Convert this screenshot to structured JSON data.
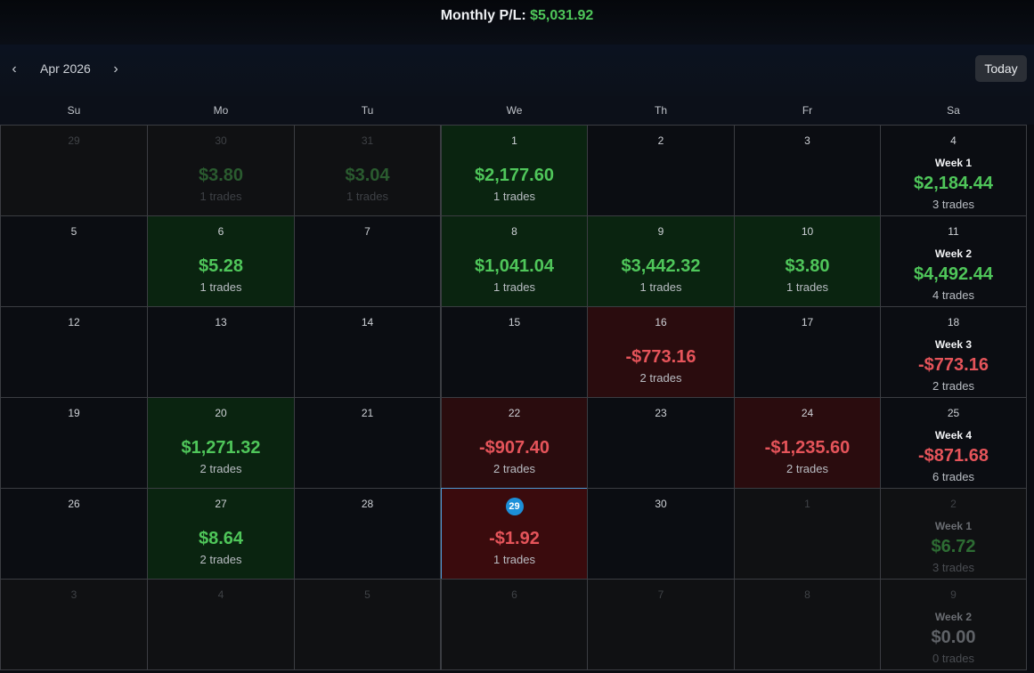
{
  "header": {
    "monthly_label": "Monthly P/L:",
    "monthly_value": "$5,031.92"
  },
  "toolbar": {
    "prev_icon": "‹",
    "next_icon": "›",
    "month": "Apr 2026",
    "today_label": "Today"
  },
  "weekdays": [
    "Su",
    "Mo",
    "Tu",
    "We",
    "Th",
    "Fr",
    "Sa"
  ],
  "weeks": [
    {
      "days": [
        {
          "day": "29",
          "other": true
        },
        {
          "day": "30",
          "other": true,
          "amount": "$3.80",
          "trades": "1 trades",
          "sign": "pos"
        },
        {
          "day": "31",
          "other": true,
          "amount": "$3.04",
          "trades": "1 trades",
          "sign": "pos"
        },
        {
          "day": "1",
          "amount": "$2,177.60",
          "trades": "1 trades",
          "sign": "pos"
        },
        {
          "day": "2"
        },
        {
          "day": "3"
        },
        {
          "day": "4",
          "week": "Week 1",
          "amount": "$2,184.44",
          "trades": "3 trades",
          "sign": "pos"
        }
      ]
    },
    {
      "days": [
        {
          "day": "5"
        },
        {
          "day": "6",
          "amount": "$5.28",
          "trades": "1 trades",
          "sign": "pos"
        },
        {
          "day": "7"
        },
        {
          "day": "8",
          "amount": "$1,041.04",
          "trades": "1 trades",
          "sign": "pos"
        },
        {
          "day": "9",
          "amount": "$3,442.32",
          "trades": "1 trades",
          "sign": "pos"
        },
        {
          "day": "10",
          "amount": "$3.80",
          "trades": "1 trades",
          "sign": "pos"
        },
        {
          "day": "11",
          "week": "Week 2",
          "amount": "$4,492.44",
          "trades": "4 trades",
          "sign": "pos"
        }
      ]
    },
    {
      "days": [
        {
          "day": "12"
        },
        {
          "day": "13"
        },
        {
          "day": "14"
        },
        {
          "day": "15"
        },
        {
          "day": "16",
          "amount": "-$773.16",
          "trades": "2 trades",
          "sign": "neg"
        },
        {
          "day": "17"
        },
        {
          "day": "18",
          "week": "Week 3",
          "amount": "-$773.16",
          "trades": "2 trades",
          "sign": "neg"
        }
      ]
    },
    {
      "days": [
        {
          "day": "19"
        },
        {
          "day": "20",
          "amount": "$1,271.32",
          "trades": "2 trades",
          "sign": "pos"
        },
        {
          "day": "21"
        },
        {
          "day": "22",
          "amount": "-$907.40",
          "trades": "2 trades",
          "sign": "neg"
        },
        {
          "day": "23"
        },
        {
          "day": "24",
          "amount": "-$1,235.60",
          "trades": "2 trades",
          "sign": "neg"
        },
        {
          "day": "25",
          "week": "Week 4",
          "amount": "-$871.68",
          "trades": "6 trades",
          "sign": "neg"
        }
      ]
    },
    {
      "days": [
        {
          "day": "26"
        },
        {
          "day": "27",
          "amount": "$8.64",
          "trades": "2 trades",
          "sign": "pos"
        },
        {
          "day": "28"
        },
        {
          "day": "29",
          "today": true,
          "amount": "-$1.92",
          "trades": "1 trades",
          "sign": "neg"
        },
        {
          "day": "30"
        },
        {
          "day": "1",
          "other": true
        },
        {
          "day": "2",
          "other": true,
          "week": "Week 1",
          "amount": "$6.72",
          "trades": "3 trades",
          "sign": "pos"
        }
      ]
    },
    {
      "days": [
        {
          "day": "3",
          "other": true
        },
        {
          "day": "4",
          "other": true
        },
        {
          "day": "5",
          "other": true
        },
        {
          "day": "6",
          "other": true
        },
        {
          "day": "7",
          "other": true
        },
        {
          "day": "8",
          "other": true
        },
        {
          "day": "9",
          "other": true,
          "week": "Week 2",
          "amount": "$0.00",
          "trades": "0 trades",
          "sign": "zero"
        }
      ]
    }
  ],
  "colors": {
    "positive": "#4fc65a",
    "negative": "#e5545a",
    "today_ring": "#4e9bd6",
    "today_badge": "#1c8fd8"
  }
}
